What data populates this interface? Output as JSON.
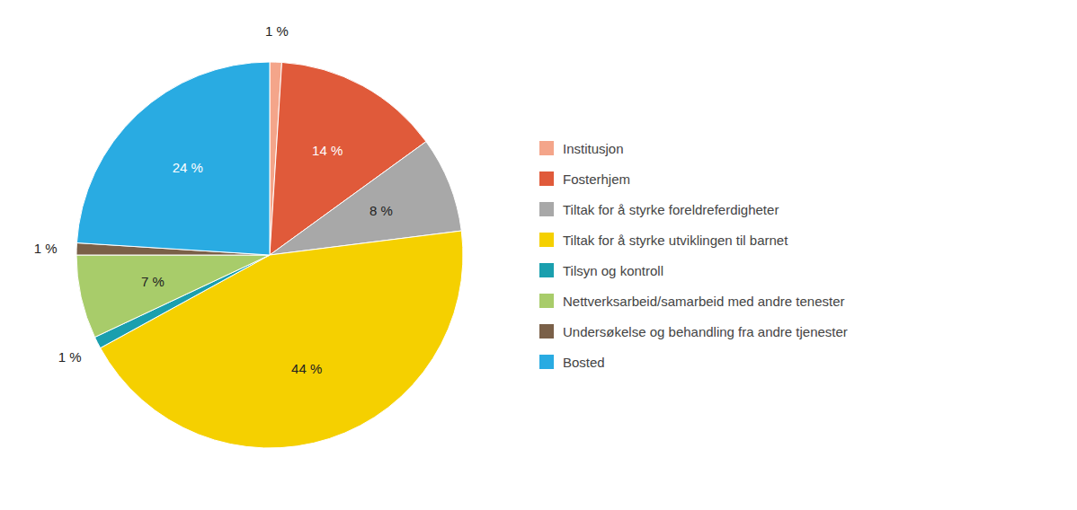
{
  "chart_data": {
    "type": "pie",
    "categories": [
      "Institusjon",
      "Fosterhjem",
      "Tiltak for å styrke foreldreferdigheter",
      "Tiltak for å styrke utviklingen til barnet",
      "Tilsyn og kontroll",
      "Nettverksarbeid/samarbeid med andre tenester",
      "Undersøkelse og behandling fra andre tjenester",
      "Bosted"
    ],
    "values": [
      1,
      14,
      8,
      44,
      1,
      7,
      1,
      24
    ],
    "value_labels": [
      "1 %",
      "14 %",
      "8 %",
      "44 %",
      "1 %",
      "7 %",
      "1 %",
      "24 %"
    ],
    "colors": [
      "#f4a58a",
      "#e05a3a",
      "#a8a8a8",
      "#f5d000",
      "#1a9fae",
      "#a8cc6a",
      "#7a6048",
      "#29abe2"
    ],
    "data_labels": true,
    "legend": "right"
  }
}
